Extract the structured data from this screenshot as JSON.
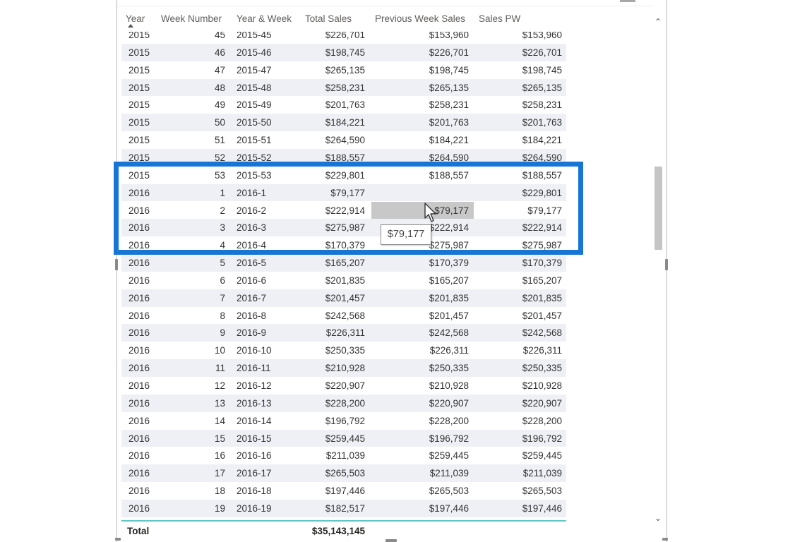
{
  "table": {
    "columns": [
      "Year",
      "Week Number",
      "Year & Week",
      "Total Sales",
      "Previous Week Sales",
      "Sales PW"
    ],
    "rows": [
      {
        "year": "2015",
        "week": "45",
        "yw": "2015-45",
        "ts": "$226,701",
        "pws": "$153,960",
        "spw": "$153,960"
      },
      {
        "year": "2015",
        "week": "46",
        "yw": "2015-46",
        "ts": "$198,745",
        "pws": "$226,701",
        "spw": "$226,701"
      },
      {
        "year": "2015",
        "week": "47",
        "yw": "2015-47",
        "ts": "$265,135",
        "pws": "$198,745",
        "spw": "$198,745"
      },
      {
        "year": "2015",
        "week": "48",
        "yw": "2015-48",
        "ts": "$258,231",
        "pws": "$265,135",
        "spw": "$265,135"
      },
      {
        "year": "2015",
        "week": "49",
        "yw": "2015-49",
        "ts": "$201,763",
        "pws": "$258,231",
        "spw": "$258,231"
      },
      {
        "year": "2015",
        "week": "50",
        "yw": "2015-50",
        "ts": "$184,221",
        "pws": "$201,763",
        "spw": "$201,763"
      },
      {
        "year": "2015",
        "week": "51",
        "yw": "2015-51",
        "ts": "$264,590",
        "pws": "$184,221",
        "spw": "$184,221"
      },
      {
        "year": "2015",
        "week": "52",
        "yw": "2015-52",
        "ts": "$188,557",
        "pws": "$264,590",
        "spw": "$264,590"
      },
      {
        "year": "2015",
        "week": "53",
        "yw": "2015-53",
        "ts": "$229,801",
        "pws": "$188,557",
        "spw": "$188,557"
      },
      {
        "year": "2016",
        "week": "1",
        "yw": "2016-1",
        "ts": "$79,177",
        "pws": "",
        "spw": "$229,801"
      },
      {
        "year": "2016",
        "week": "2",
        "yw": "2016-2",
        "ts": "$222,914",
        "pws": "$79,177",
        "spw": "$79,177"
      },
      {
        "year": "2016",
        "week": "3",
        "yw": "2016-3",
        "ts": "$275,987",
        "pws": "$222,914",
        "spw": "$222,914"
      },
      {
        "year": "2016",
        "week": "4",
        "yw": "2016-4",
        "ts": "$170,379",
        "pws": "$275,987",
        "spw": "$275,987"
      },
      {
        "year": "2016",
        "week": "5",
        "yw": "2016-5",
        "ts": "$165,207",
        "pws": "$170,379",
        "spw": "$170,379"
      },
      {
        "year": "2016",
        "week": "6",
        "yw": "2016-6",
        "ts": "$201,835",
        "pws": "$165,207",
        "spw": "$165,207"
      },
      {
        "year": "2016",
        "week": "7",
        "yw": "2016-7",
        "ts": "$201,457",
        "pws": "$201,835",
        "spw": "$201,835"
      },
      {
        "year": "2016",
        "week": "8",
        "yw": "2016-8",
        "ts": "$242,568",
        "pws": "$201,457",
        "spw": "$201,457"
      },
      {
        "year": "2016",
        "week": "9",
        "yw": "2016-9",
        "ts": "$226,311",
        "pws": "$242,568",
        "spw": "$242,568"
      },
      {
        "year": "2016",
        "week": "10",
        "yw": "2016-10",
        "ts": "$250,335",
        "pws": "$226,311",
        "spw": "$226,311"
      },
      {
        "year": "2016",
        "week": "11",
        "yw": "2016-11",
        "ts": "$210,928",
        "pws": "$250,335",
        "spw": "$250,335"
      },
      {
        "year": "2016",
        "week": "12",
        "yw": "2016-12",
        "ts": "$220,907",
        "pws": "$210,928",
        "spw": "$210,928"
      },
      {
        "year": "2016",
        "week": "13",
        "yw": "2016-13",
        "ts": "$228,200",
        "pws": "$220,907",
        "spw": "$220,907"
      },
      {
        "year": "2016",
        "week": "14",
        "yw": "2016-14",
        "ts": "$196,792",
        "pws": "$228,200",
        "spw": "$228,200"
      },
      {
        "year": "2016",
        "week": "15",
        "yw": "2016-15",
        "ts": "$259,445",
        "pws": "$196,792",
        "spw": "$196,792"
      },
      {
        "year": "2016",
        "week": "16",
        "yw": "2016-16",
        "ts": "$211,039",
        "pws": "$259,445",
        "spw": "$259,445"
      },
      {
        "year": "2016",
        "week": "17",
        "yw": "2016-17",
        "ts": "$265,503",
        "pws": "$211,039",
        "spw": "$211,039"
      },
      {
        "year": "2016",
        "week": "18",
        "yw": "2016-18",
        "ts": "$197,446",
        "pws": "$265,503",
        "spw": "$265,503"
      },
      {
        "year": "2016",
        "week": "19",
        "yw": "2016-19",
        "ts": "$182,517",
        "pws": "$197,446",
        "spw": "$197,446"
      }
    ],
    "total": {
      "label": "Total",
      "value": "$35,143,145"
    },
    "hovered_row": 10,
    "sorted_column": "Year"
  },
  "tooltip": {
    "text": "$79,177"
  },
  "colors": {
    "highlight_border": "#1775d6",
    "total_separator": "#5fc6c5",
    "row_alt": "#eef0f5"
  },
  "icons": {
    "scroll_up": "chevron-up-icon",
    "scroll_down": "chevron-down-icon",
    "cursor": "mouse-pointer-icon"
  }
}
